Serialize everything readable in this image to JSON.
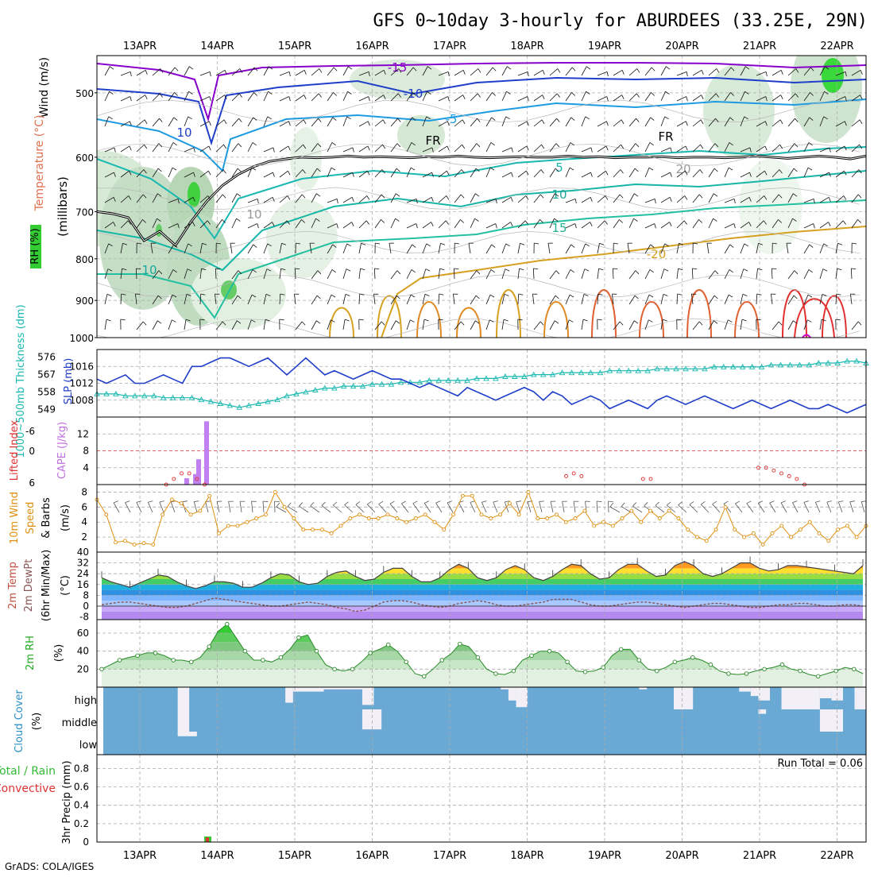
{
  "title": "GFS 0~10day 3-hourly for ABURDEES (33.25E, 29N)",
  "footer": "GrADS: COLA/IGES",
  "colors": {
    "purple": "#8800cc",
    "blue": "#1f3ec9",
    "skyblue": "#1e9be0",
    "teal": "#19b8b0",
    "green": "#22aa55",
    "orange": "#d6a020",
    "red": "#e03030",
    "cloud": "#6aa9d4",
    "grid": "#aaaaaa"
  },
  "chart_data": [
    {
      "type": "heatmap",
      "name": "upper_air",
      "x_ticks": [
        "13APR",
        "14APR",
        "15APR",
        "16APR",
        "17APR",
        "18APR",
        "19APR",
        "20APR",
        "21APR",
        "22APR"
      ],
      "ylabel": "(millibars)",
      "left_labels": [
        "Wind (m/s)",
        "Temperature (°C)",
        "RH (%)"
      ],
      "y_ticks": [
        "500",
        "600",
        "700",
        "800",
        "900",
        "1000"
      ],
      "ylim": [
        1000,
        450
      ],
      "y_scale": "log",
      "contour_labels": [
        "-15",
        "-10",
        "-5",
        "10",
        "FR",
        "FR",
        "5",
        "10",
        "15",
        "-20",
        "10",
        "10",
        "20"
      ],
      "freezing_level_mb": [
        700,
        704,
        712,
        760,
        740,
        770,
        720,
        680,
        650,
        630,
        616,
        607,
        603,
        600,
        601,
        600,
        598,
        600,
        599,
        600,
        601,
        599,
        600,
        598,
        600,
        601,
        600,
        599,
        600,
        600,
        598,
        600,
        599,
        601,
        600,
        600,
        599,
        601,
        600,
        600,
        601,
        600,
        598,
        600,
        602,
        600,
        598,
        600,
        603,
        598
      ]
    },
    {
      "type": "line",
      "name": "slp_thickness",
      "ylabel_left": "1000~500mb Thickness (dm)",
      "ylabel_right": "SLP (mb)",
      "y_ticks_left": [
        "576",
        "567",
        "558",
        "549"
      ],
      "y_ticks_right": [
        "1016",
        "1012",
        "1008"
      ],
      "ylim": [
        1004,
        1020
      ],
      "series": [
        {
          "name": "SLP (mb)",
          "values": [
            1013,
            1012,
            1013,
            1014,
            1012,
            1012,
            1013,
            1014,
            1013,
            1012,
            1016,
            1016,
            1017,
            1018,
            1018,
            1017,
            1016,
            1017,
            1018,
            1016,
            1014,
            1016,
            1018,
            1016,
            1014,
            1015,
            1014,
            1013,
            1014,
            1015,
            1014,
            1013,
            1013,
            1012,
            1011,
            1012,
            1011,
            1010,
            1009,
            1011,
            1010,
            1009,
            1008,
            1009,
            1010,
            1011,
            1010,
            1008,
            1010,
            1009,
            1007,
            1008,
            1009,
            1008,
            1006,
            1007,
            1008,
            1007,
            1006,
            1008,
            1009,
            1008,
            1007,
            1008,
            1009,
            1008,
            1007,
            1006,
            1007,
            1008,
            1007,
            1006,
            1007,
            1008,
            1007,
            1006,
            1006,
            1007,
            1006,
            1005,
            1006,
            1007
          ]
        },
        {
          "name": "Thickness (dm)",
          "values": [
            557,
            557,
            557,
            556,
            556,
            556,
            556,
            555,
            555,
            555,
            555,
            554,
            553,
            552,
            551,
            550,
            551,
            552,
            553,
            554,
            556,
            557,
            558,
            559,
            560,
            560,
            561,
            561,
            561,
            562,
            562,
            562,
            563,
            563,
            563,
            564,
            564,
            564,
            564,
            564,
            565,
            565,
            565,
            566,
            566,
            566,
            567,
            567,
            567,
            568,
            568,
            568,
            568,
            568,
            569,
            569,
            569,
            569,
            569,
            570,
            570,
            570,
            570,
            570,
            570,
            571,
            571,
            571,
            571,
            571,
            571,
            572,
            572,
            572,
            572,
            572,
            573,
            573,
            573,
            574,
            574,
            573
          ]
        }
      ]
    },
    {
      "type": "bar",
      "name": "cape_li",
      "ylabel_left": "Lifted Index",
      "ylabel_right": "CAPE (J/kg)",
      "y_ticks_left": [
        "-6",
        "0",
        "6"
      ],
      "y_ticks_right": [
        "12",
        "8",
        "4"
      ],
      "ylim": [
        0,
        16
      ],
      "series": [
        {
          "name": "CAPE (J/kg)",
          "categories": [
            "13APR 15z",
            "13APR 18z",
            "13APR 21z",
            "14APR 00z"
          ],
          "values": [
            1.5,
            2.5,
            6,
            15
          ]
        },
        {
          "name": "Lifted Index",
          "x_frac": [
            0.09,
            0.1,
            0.11,
            0.12,
            0.13,
            0.14,
            0.61,
            0.62,
            0.63,
            0.71,
            0.72,
            0.86,
            0.87,
            0.88,
            0.89,
            0.9,
            0.91,
            0.92
          ],
          "values": [
            6,
            5,
            4,
            4,
            5,
            6,
            4.5,
            4,
            4.5,
            5,
            5,
            3,
            3,
            3.5,
            4,
            4.5,
            5,
            6
          ]
        }
      ]
    },
    {
      "type": "line",
      "name": "wind10m",
      "ylabel": "10m Wind Speed (m/s) & Barbs",
      "y_ticks": [
        "8",
        "6",
        "4",
        "2"
      ],
      "ylim": [
        0,
        9
      ],
      "values": [
        7,
        5,
        1.3,
        1.5,
        1,
        1.2,
        1,
        5,
        7,
        6.5,
        5,
        5.5,
        7.5,
        2.5,
        3.5,
        3.5,
        4,
        4.5,
        5,
        8,
        6,
        4.5,
        3,
        3,
        3,
        2.5,
        3.5,
        4.5,
        5,
        4.5,
        4.5,
        5,
        4.5,
        4,
        4.5,
        5,
        4,
        3,
        5,
        7.5,
        7.5,
        5,
        4.5,
        5,
        6.5,
        5,
        8,
        4.5,
        4.5,
        5,
        4,
        4.5,
        5.5,
        3.5,
        4,
        3.5,
        4.5,
        5.5,
        4,
        5.5,
        4.5,
        5.5,
        4.5,
        3,
        2,
        1.5,
        3,
        6,
        3,
        2,
        2.5,
        1,
        2.5,
        3.5,
        2,
        3,
        4,
        2.5,
        1.5,
        3,
        3.5,
        2,
        3.5
      ]
    },
    {
      "type": "area",
      "name": "temp2m",
      "ylabel": "2m Temp 2m DewPt (6hr Min/Max) (°C)",
      "y_ticks": [
        "40",
        "32",
        "24",
        "16",
        "8",
        "0",
        "-8"
      ],
      "ylim": [
        -10,
        40
      ],
      "series": [
        {
          "name": "2m Temp",
          "values": [
            21,
            18,
            16,
            14,
            17,
            20,
            23,
            22,
            18,
            15,
            13,
            15,
            18,
            18,
            17,
            14,
            14,
            17,
            21,
            24,
            23,
            18,
            16,
            17,
            22,
            25,
            26,
            22,
            19,
            20,
            25,
            28,
            28,
            22,
            18,
            18,
            21,
            27,
            31,
            28,
            21,
            19,
            21,
            27,
            30,
            27,
            21,
            19,
            22,
            27,
            31,
            30,
            24,
            20,
            21,
            27,
            31,
            31,
            26,
            22,
            23,
            30,
            33,
            30,
            24,
            22,
            24,
            28,
            32,
            32,
            28,
            26,
            27,
            30,
            30,
            29,
            28,
            27,
            26,
            25,
            24,
            30
          ]
        },
        {
          "name": "2m DewPt",
          "values": [
            1,
            2,
            3,
            3,
            2,
            1,
            0,
            -1,
            -1,
            0,
            2,
            4,
            6,
            5,
            4,
            3,
            2,
            1,
            0,
            0,
            1,
            2,
            3,
            2,
            1,
            -1,
            -2,
            -4,
            -3,
            0,
            3,
            4,
            4,
            3,
            1,
            0,
            -1,
            0,
            2,
            3,
            4,
            3,
            1,
            0,
            0,
            1,
            2,
            3,
            5,
            5,
            5,
            3,
            1,
            0,
            0,
            1,
            2,
            3,
            3,
            2,
            1,
            0,
            -1,
            0,
            1,
            2,
            2,
            1,
            0,
            -1,
            -1,
            0,
            1,
            1,
            2,
            2,
            1,
            0,
            0,
            1,
            1,
            0
          ]
        }
      ]
    },
    {
      "type": "area",
      "name": "rh2m",
      "ylabel": "2m RH (%)",
      "y_ticks": [
        "60",
        "40",
        "20"
      ],
      "ylim": [
        0,
        75
      ],
      "values": [
        20,
        25,
        30,
        33,
        35,
        38,
        38,
        35,
        30,
        30,
        28,
        33,
        45,
        62,
        70,
        55,
        40,
        30,
        30,
        28,
        33,
        42,
        55,
        58,
        40,
        25,
        20,
        18,
        20,
        28,
        38,
        42,
        47,
        40,
        28,
        15,
        12,
        20,
        30,
        37,
        48,
        45,
        33,
        20,
        15,
        14,
        18,
        30,
        35,
        40,
        40,
        38,
        28,
        18,
        17,
        18,
        22,
        35,
        42,
        42,
        30,
        20,
        18,
        22,
        28,
        30,
        33,
        30,
        25,
        18,
        15,
        14,
        15,
        18,
        20,
        22,
        25,
        20,
        18,
        14,
        12,
        15,
        18,
        22,
        20,
        15
      ]
    },
    {
      "type": "heatmap",
      "name": "cloud_cover",
      "ylabel": "Cloud Cover (%)",
      "layers": [
        "high",
        "middle",
        "low"
      ],
      "clear_segments": [
        {
          "layer": "high",
          "x0": 0.105,
          "x1": 0.12,
          "frac": 1.0
        },
        {
          "layer": "middle",
          "x0": 0.105,
          "x1": 0.12,
          "frac": 1.0
        },
        {
          "layer": "low",
          "x0": 0.105,
          "x1": 0.13,
          "frac": 0.2
        },
        {
          "layer": "high",
          "x0": 0.245,
          "x1": 0.255,
          "frac": 0.7
        },
        {
          "layer": "high",
          "x0": 0.255,
          "x1": 0.295,
          "frac": 0.2
        },
        {
          "layer": "high",
          "x0": 0.295,
          "x1": 0.345,
          "frac": 0.1
        },
        {
          "layer": "high",
          "x0": 0.345,
          "x1": 0.36,
          "frac": 0.8
        },
        {
          "layer": "middle",
          "x0": 0.345,
          "x1": 0.37,
          "frac": 0.9
        },
        {
          "layer": "high",
          "x0": 0.525,
          "x1": 0.535,
          "frac": 0.1
        },
        {
          "layer": "high",
          "x0": 0.535,
          "x1": 0.545,
          "frac": 0.6
        },
        {
          "layer": "high",
          "x0": 0.545,
          "x1": 0.56,
          "frac": 0.9
        },
        {
          "layer": "high",
          "x0": 0.705,
          "x1": 0.715,
          "frac": 0.1
        },
        {
          "layer": "high",
          "x0": 0.75,
          "x1": 0.775,
          "frac": 1.0
        },
        {
          "layer": "high",
          "x0": 0.835,
          "x1": 0.85,
          "frac": 0.2
        },
        {
          "layer": "high",
          "x0": 0.85,
          "x1": 0.86,
          "frac": 0.4
        },
        {
          "layer": "high",
          "x0": 0.86,
          "x1": 0.875,
          "frac": 0.6
        },
        {
          "layer": "middle",
          "x0": 0.86,
          "x1": 0.87,
          "frac": 0.2
        },
        {
          "layer": "high",
          "x0": 0.89,
          "x1": 0.94,
          "frac": 1.0
        },
        {
          "layer": "high",
          "x0": 0.94,
          "x1": 0.955,
          "frac": 0.5
        },
        {
          "layer": "high",
          "x0": 0.955,
          "x1": 0.97,
          "frac": 0.6
        },
        {
          "layer": "middle",
          "x0": 0.94,
          "x1": 0.97,
          "frac": 1.0
        },
        {
          "layer": "high",
          "x0": 0.985,
          "x1": 1.0,
          "frac": 1.0
        }
      ]
    },
    {
      "type": "bar",
      "name": "precip",
      "ylabel": "3hr Precip (mm)",
      "left_labels": [
        "Total / Rain",
        "Convective"
      ],
      "annotation": "Run Total = 0.06",
      "y_ticks": [
        "0.8",
        "0.6",
        "0.4",
        "0.2",
        "0"
      ],
      "ylim": [
        0,
        0.95
      ],
      "series": [
        {
          "name": "Total / Rain",
          "categories": [
            "13APR 21z"
          ],
          "values": [
            0.06
          ]
        },
        {
          "name": "Convective",
          "categories": [
            "13APR 21z"
          ],
          "values": [
            0.05
          ]
        }
      ]
    }
  ]
}
